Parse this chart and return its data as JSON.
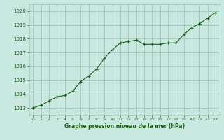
{
  "x": [
    0,
    1,
    2,
    3,
    4,
    5,
    6,
    7,
    8,
    9,
    10,
    11,
    12,
    13,
    14,
    15,
    16,
    17,
    18,
    19,
    20,
    21,
    22,
    23
  ],
  "y": [
    1013.0,
    1013.2,
    1013.5,
    1013.8,
    1013.9,
    1014.2,
    1014.9,
    1015.3,
    1015.8,
    1016.6,
    1017.2,
    1017.7,
    1017.8,
    1017.9,
    1017.6,
    1017.6,
    1017.6,
    1017.7,
    1017.7,
    1018.3,
    1018.8,
    1019.1,
    1019.5,
    1019.9
  ],
  "background_color": "#c8e8e0",
  "grid_color": "#a0c8bc",
  "line_color": "#1a5e1a",
  "marker_color": "#1a5e1a",
  "xlabel": "Graphe pression niveau de la mer (hPa)",
  "ylim_min": 1012.5,
  "ylim_max": 1020.5,
  "xlim_min": -0.5,
  "xlim_max": 23.5,
  "yticks": [
    1013,
    1014,
    1015,
    1016,
    1017,
    1018,
    1019,
    1020
  ],
  "xticks": [
    0,
    1,
    2,
    3,
    4,
    5,
    6,
    7,
    8,
    9,
    10,
    11,
    12,
    13,
    14,
    15,
    16,
    17,
    18,
    19,
    20,
    21,
    22,
    23
  ],
  "xtick_labels": [
    "0",
    "1",
    "2",
    "3",
    "4",
    "5",
    "6",
    "7",
    "8",
    "9",
    "10",
    "11",
    "12",
    "13",
    "14",
    "15",
    "16",
    "17",
    "18",
    "19",
    "20",
    "21",
    "22",
    "23"
  ]
}
